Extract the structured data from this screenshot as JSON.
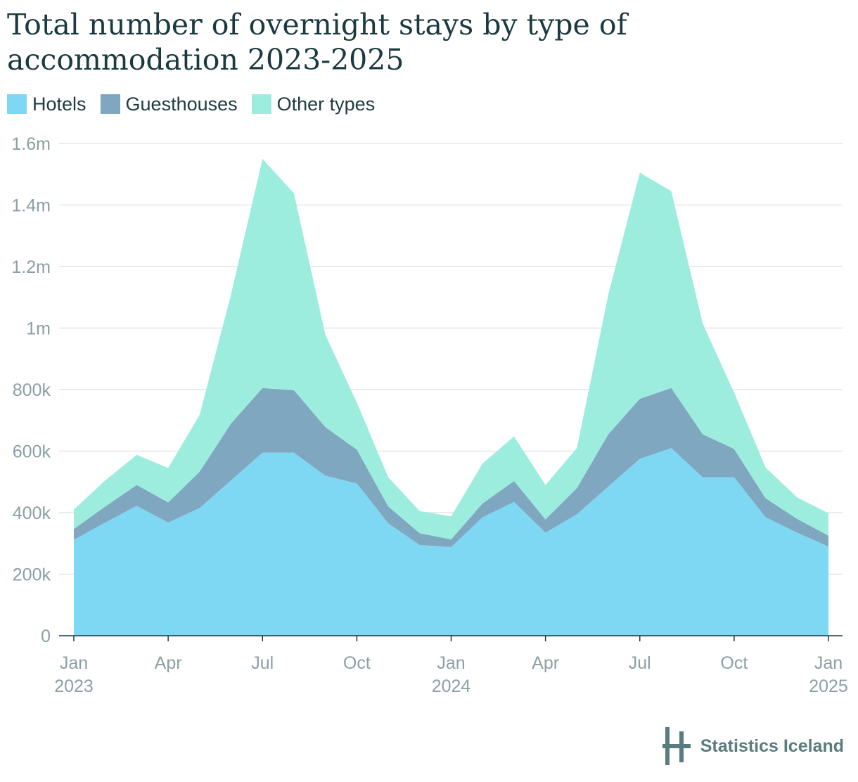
{
  "header": {
    "title": "Total number of overnight stays by type of accommodation 2023-2025"
  },
  "legend": {
    "items": [
      {
        "label": "Hotels",
        "color": "#7fd8f3"
      },
      {
        "label": "Guesthouses",
        "color": "#80a7c0"
      },
      {
        "label": "Other types",
        "color": "#9deddf"
      }
    ]
  },
  "source": {
    "label": "Statistics Iceland",
    "icon": "statistics-iceland-logo-icon"
  },
  "chart_data": {
    "type": "area",
    "stacked": true,
    "title": "Total number of overnight stays by type of accommodation 2023-2025",
    "xlabel": "",
    "ylabel": "",
    "ylim": [
      0,
      1600000
    ],
    "y_ticks": [
      0,
      200000,
      400000,
      600000,
      800000,
      1000000,
      1200000,
      1400000,
      1600000
    ],
    "y_tick_labels": [
      "0",
      "200k",
      "400k",
      "600k",
      "800k",
      "1m",
      "1.2m",
      "1.4m",
      "1.6m"
    ],
    "x_tick_labels": [
      {
        "month": "2023-01",
        "label": "Jan",
        "year": "2023"
      },
      {
        "month": "2023-04",
        "label": "Apr",
        "year": ""
      },
      {
        "month": "2023-07",
        "label": "Jul",
        "year": ""
      },
      {
        "month": "2023-10",
        "label": "Oct",
        "year": ""
      },
      {
        "month": "2024-01",
        "label": "Jan",
        "year": "2024"
      },
      {
        "month": "2024-04",
        "label": "Apr",
        "year": ""
      },
      {
        "month": "2024-07",
        "label": "Jul",
        "year": ""
      },
      {
        "month": "2024-10",
        "label": "Oct",
        "year": ""
      },
      {
        "month": "2025-01",
        "label": "Jan",
        "year": "2025"
      }
    ],
    "x": [
      "2023-01",
      "2023-02",
      "2023-03",
      "2023-04",
      "2023-05",
      "2023-06",
      "2023-07",
      "2023-08",
      "2023-09",
      "2023-10",
      "2023-11",
      "2023-12",
      "2024-01",
      "2024-02",
      "2024-03",
      "2024-04",
      "2024-05",
      "2024-06",
      "2024-07",
      "2024-08",
      "2024-09",
      "2024-10",
      "2024-11",
      "2024-12",
      "2025-01"
    ],
    "grid": true,
    "legend_position": "top-left",
    "series": [
      {
        "name": "Hotels",
        "color": "#7fd8f3",
        "values": [
          312000,
          368000,
          422000,
          368000,
          415000,
          505000,
          595000,
          595000,
          520000,
          495000,
          365000,
          295000,
          288000,
          385000,
          435000,
          335000,
          395000,
          485000,
          575000,
          610000,
          515000,
          515000,
          385000,
          335000,
          290000
        ]
      },
      {
        "name": "Guesthouses",
        "color": "#80a7c0",
        "values": [
          35000,
          52000,
          68000,
          65000,
          118000,
          185000,
          210000,
          203000,
          158000,
          110000,
          55000,
          38000,
          25000,
          45000,
          68000,
          43000,
          85000,
          170000,
          195000,
          195000,
          140000,
          92000,
          62000,
          45000,
          35000
        ]
      },
      {
        "name": "Other types",
        "color": "#9deddf",
        "values": [
          63000,
          85000,
          98000,
          112000,
          185000,
          420000,
          745000,
          640000,
          300000,
          153000,
          95000,
          72000,
          75000,
          130000,
          145000,
          112000,
          130000,
          455000,
          735000,
          640000,
          360000,
          183000,
          100000,
          70000,
          73000
        ]
      }
    ]
  }
}
